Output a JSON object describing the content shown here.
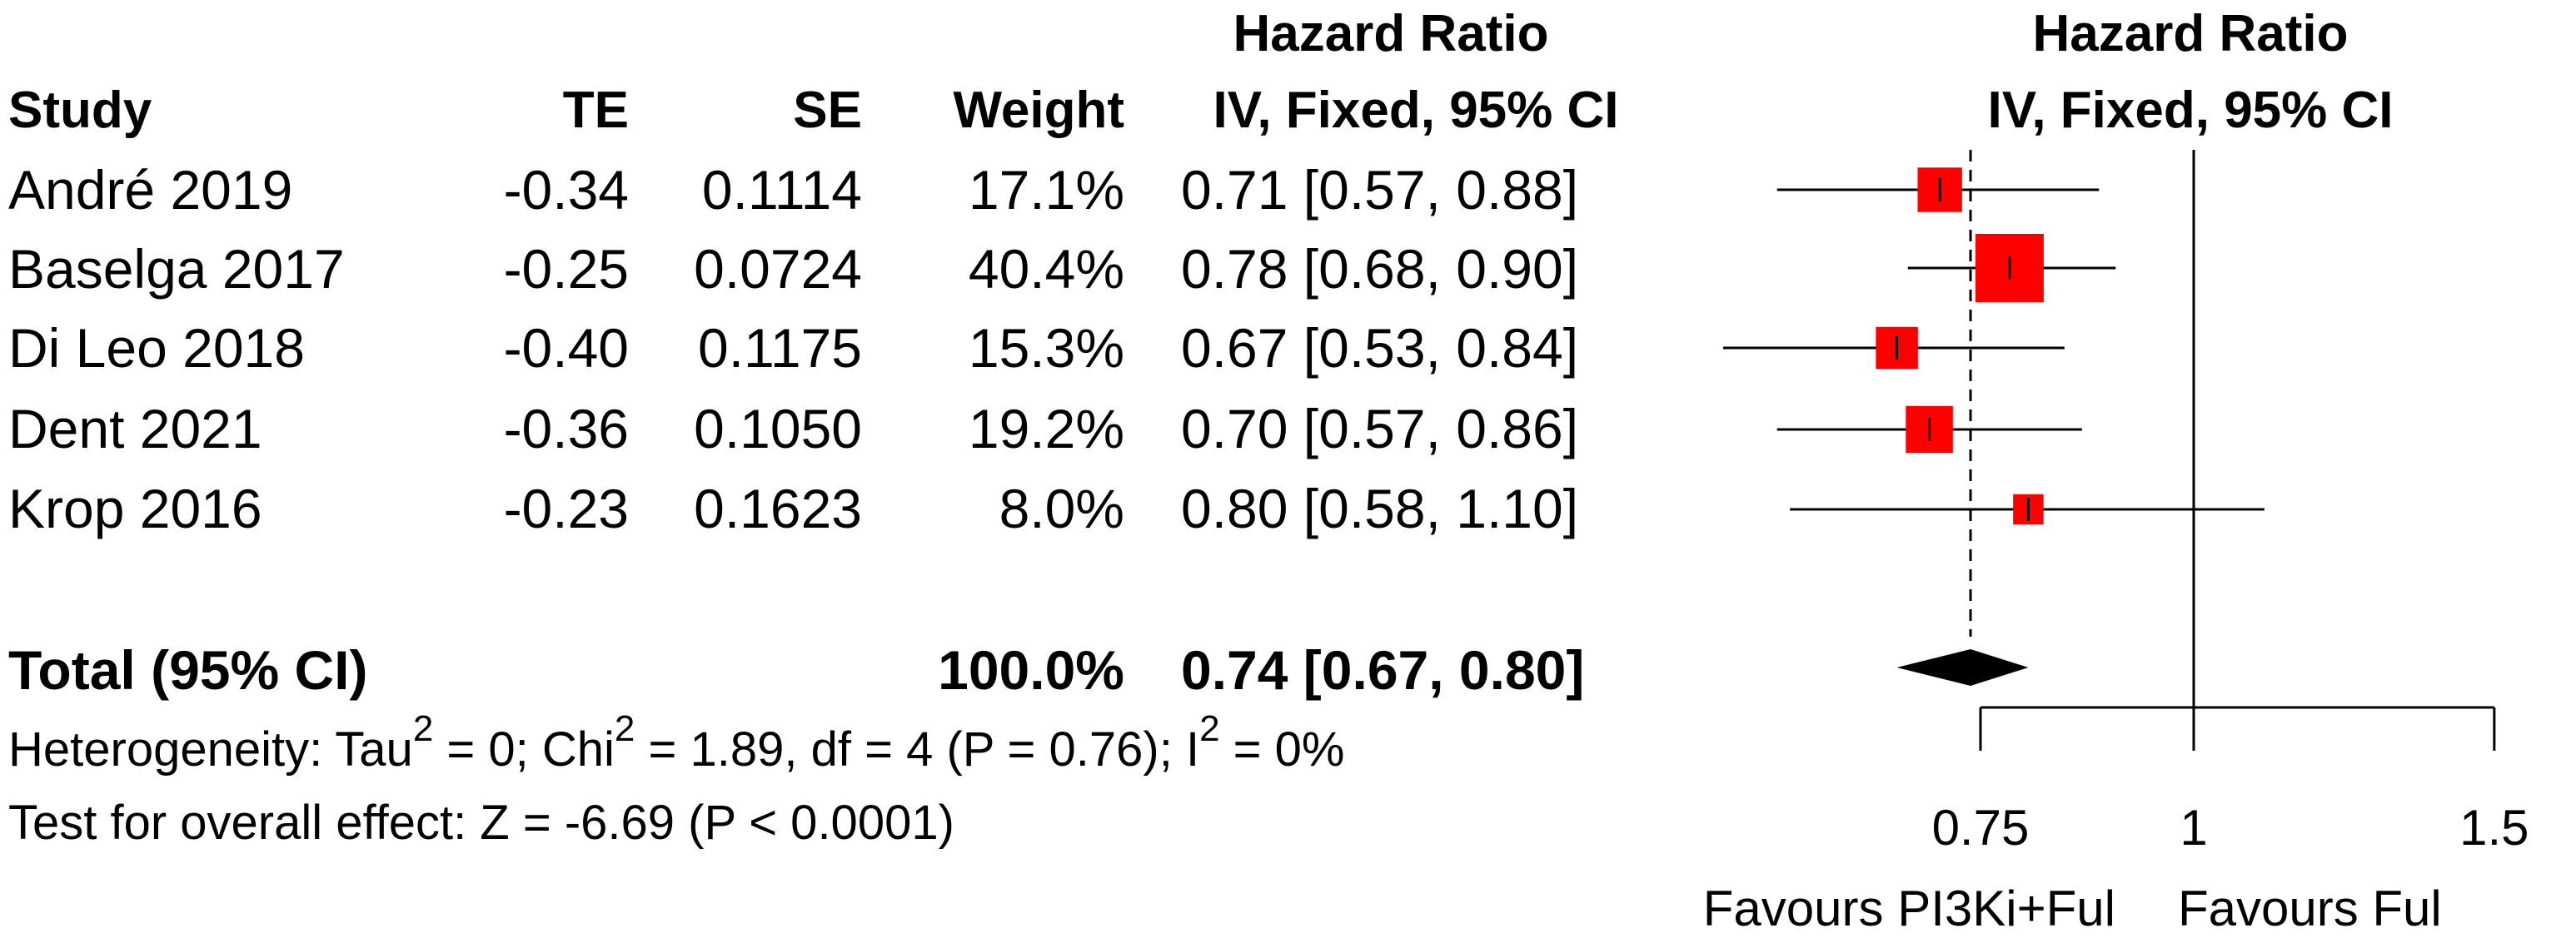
{
  "headers": {
    "hr_top": "Hazard Ratio",
    "hr_bottom": "IV, Fixed, 95% CI",
    "study": "Study",
    "te": "TE",
    "se": "SE",
    "weight": "Weight",
    "plot_top": "Hazard Ratio",
    "plot_bottom": "IV, Fixed, 95% CI"
  },
  "studies": [
    {
      "name": "André 2019",
      "te": "-0.34",
      "se": "0.1114",
      "weight": "17.1%",
      "ci_text": "0.71 [0.57, 0.88]"
    },
    {
      "name": "Baselga 2017",
      "te": "-0.25",
      "se": "0.0724",
      "weight": "40.4%",
      "ci_text": "0.78 [0.68, 0.90]"
    },
    {
      "name": "Di Leo 2018",
      "te": "-0.40",
      "se": "0.1175",
      "weight": "15.3%",
      "ci_text": "0.67 [0.53, 0.84]"
    },
    {
      "name": "Dent 2021",
      "te": "-0.36",
      "se": "0.1050",
      "weight": "19.2%",
      "ci_text": "0.70 [0.57, 0.86]"
    },
    {
      "name": "Krop 2016",
      "te": "-0.23",
      "se": "0.1623",
      "weight": "8.0%",
      "ci_text": "0.80 [0.58, 1.10]"
    }
  ],
  "total": {
    "label": "Total (95% CI)",
    "weight": "100.0%",
    "ci_text": "0.74 [0.67, 0.80]"
  },
  "heterogeneity": {
    "prefix": "Heterogeneity: Tau",
    "sup1": "2",
    "part2": " = 0; Chi",
    "sup2": "2",
    "part3": " = 1.89, df = 4 (P = 0.76); I",
    "sup3": "2",
    "part4": " = 0%"
  },
  "overall_effect": "Test for overall effect: Z = -6.69 (P < 0.0001)",
  "axis": {
    "tick_labels": [
      "0.75",
      "1",
      "1.5"
    ],
    "favours_left": "Favours PI3Ki+Ful",
    "favours_right": "Favours Ful"
  },
  "colors": {
    "box": "#ff0000",
    "line": "#000000",
    "diamond": "#000000"
  },
  "chart_data": {
    "type": "forest",
    "measure": "Hazard Ratio",
    "method": "IV, Fixed, 95% CI",
    "scale": "log",
    "xticks": [
      0.75,
      1,
      1.5
    ],
    "null_value": 1,
    "pooled_reference_line": 0.74,
    "studies": [
      {
        "name": "André 2019",
        "hr": 0.71,
        "lower": 0.57,
        "upper": 0.88,
        "weight": 17.1
      },
      {
        "name": "Baselga 2017",
        "hr": 0.78,
        "lower": 0.68,
        "upper": 0.9,
        "weight": 40.4
      },
      {
        "name": "Di Leo 2018",
        "hr": 0.67,
        "lower": 0.53,
        "upper": 0.84,
        "weight": 15.3
      },
      {
        "name": "Dent 2021",
        "hr": 0.7,
        "lower": 0.57,
        "upper": 0.86,
        "weight": 19.2
      },
      {
        "name": "Krop 2016",
        "hr": 0.8,
        "lower": 0.58,
        "upper": 1.1,
        "weight": 8.0
      }
    ],
    "pooled": {
      "hr": 0.74,
      "lower": 0.67,
      "upper": 0.8,
      "weight": 100.0
    }
  }
}
